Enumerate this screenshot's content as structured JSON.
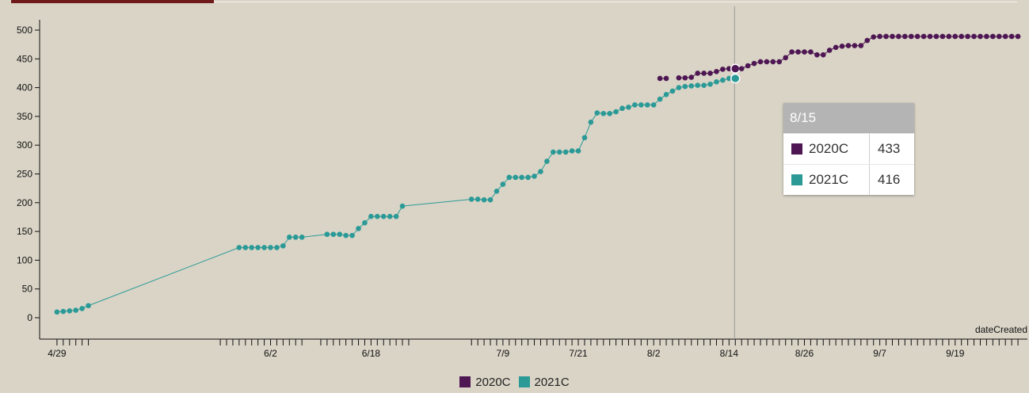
{
  "colors": {
    "series_2020C": "#4e1653",
    "series_2021C": "#2b9a97",
    "axis": "#111111",
    "crosshair": "#9a9a9a"
  },
  "chart_data": {
    "type": "line",
    "xlabel": "dateCreated",
    "ylabel": "",
    "ylim": [
      0,
      500
    ],
    "y_ticks": [
      0,
      50,
      100,
      150,
      200,
      250,
      300,
      350,
      400,
      450,
      500
    ],
    "x_domain": [
      "2021-04-28",
      "2021-09-30"
    ],
    "x_tick_labels": [
      {
        "date": "2021-04-29",
        "label": "4/29"
      },
      {
        "date": "2021-06-02",
        "label": "6/2"
      },
      {
        "date": "2021-06-18",
        "label": "6/18"
      },
      {
        "date": "2021-07-09",
        "label": "7/9"
      },
      {
        "date": "2021-07-21",
        "label": "7/21"
      },
      {
        "date": "2021-08-02",
        "label": "8/2"
      },
      {
        "date": "2021-08-14",
        "label": "8/14"
      },
      {
        "date": "2021-08-26",
        "label": "8/26"
      },
      {
        "date": "2021-09-07",
        "label": "9/7"
      },
      {
        "date": "2021-09-19",
        "label": "9/19"
      }
    ],
    "minor_tick_dates": [
      "2021-04-29",
      "2021-04-30",
      "2021-05-01",
      "2021-05-02",
      "2021-05-03",
      "2021-05-04",
      "2021-05-25",
      "2021-05-26",
      "2021-05-27",
      "2021-05-28",
      "2021-05-29",
      "2021-05-30",
      "2021-05-31",
      "2021-06-01",
      "2021-06-02",
      "2021-06-03",
      "2021-06-04",
      "2021-06-05",
      "2021-06-06",
      "2021-06-07",
      "2021-06-10",
      "2021-06-11",
      "2021-06-12",
      "2021-06-13",
      "2021-06-14",
      "2021-06-15",
      "2021-06-16",
      "2021-06-17",
      "2021-06-18",
      "2021-06-19",
      "2021-06-20",
      "2021-06-21",
      "2021-06-22",
      "2021-06-23",
      "2021-06-24",
      "2021-07-04",
      "2021-07-05",
      "2021-07-06",
      "2021-07-07",
      "2021-07-08",
      "2021-07-09",
      "2021-07-10",
      "2021-07-11",
      "2021-07-12",
      "2021-07-13",
      "2021-07-14",
      "2021-07-15",
      "2021-07-16",
      "2021-07-17",
      "2021-07-18",
      "2021-07-19",
      "2021-07-20",
      "2021-07-21",
      "2021-07-22",
      "2021-07-23",
      "2021-07-24",
      "2021-07-25",
      "2021-07-26",
      "2021-07-27",
      "2021-07-28",
      "2021-07-29",
      "2021-07-30",
      "2021-07-31",
      "2021-08-01",
      "2021-08-02",
      "2021-08-03",
      "2021-08-04",
      "2021-08-05",
      "2021-08-06",
      "2021-08-07",
      "2021-08-08",
      "2021-08-09",
      "2021-08-10",
      "2021-08-11",
      "2021-08-12",
      "2021-08-13",
      "2021-08-14",
      "2021-08-15",
      "2021-08-16",
      "2021-08-17",
      "2021-08-18",
      "2021-08-19",
      "2021-08-20",
      "2021-08-21",
      "2021-08-22",
      "2021-08-23",
      "2021-08-24",
      "2021-08-25",
      "2021-08-26",
      "2021-08-27",
      "2021-08-28",
      "2021-08-29",
      "2021-08-30",
      "2021-08-31",
      "2021-09-01",
      "2021-09-02",
      "2021-09-03",
      "2021-09-04",
      "2021-09-05",
      "2021-09-06",
      "2021-09-07",
      "2021-09-08",
      "2021-09-09",
      "2021-09-10",
      "2021-09-11",
      "2021-09-12",
      "2021-09-13",
      "2021-09-14",
      "2021-09-15",
      "2021-09-16",
      "2021-09-17",
      "2021-09-18",
      "2021-09-19",
      "2021-09-20",
      "2021-09-21",
      "2021-09-22",
      "2021-09-23",
      "2021-09-24",
      "2021-09-25",
      "2021-09-26",
      "2021-09-27",
      "2021-09-28",
      "2021-09-29"
    ],
    "series": [
      {
        "name": "2020C",
        "points": [
          [
            "2021-08-03",
            416
          ],
          [
            "2021-08-04",
            416
          ],
          [
            "2021-08-06",
            417
          ],
          [
            "2021-08-07",
            417
          ],
          [
            "2021-08-08",
            418
          ],
          [
            "2021-08-09",
            425
          ],
          [
            "2021-08-10",
            425
          ],
          [
            "2021-08-11",
            425
          ],
          [
            "2021-08-12",
            428
          ],
          [
            "2021-08-13",
            432
          ],
          [
            "2021-08-14",
            433
          ],
          [
            "2021-08-15",
            433
          ],
          [
            "2021-08-16",
            433
          ],
          [
            "2021-08-17",
            438
          ],
          [
            "2021-08-18",
            442
          ],
          [
            "2021-08-19",
            445
          ],
          [
            "2021-08-20",
            445
          ],
          [
            "2021-08-21",
            445
          ],
          [
            "2021-08-22",
            445
          ],
          [
            "2021-08-23",
            452
          ],
          [
            "2021-08-24",
            462
          ],
          [
            "2021-08-25",
            462
          ],
          [
            "2021-08-26",
            462
          ],
          [
            "2021-08-27",
            462
          ],
          [
            "2021-08-28",
            457
          ],
          [
            "2021-08-29",
            457
          ],
          [
            "2021-08-30",
            465
          ],
          [
            "2021-08-31",
            470
          ],
          [
            "2021-09-01",
            472
          ],
          [
            "2021-09-02",
            473
          ],
          [
            "2021-09-03",
            473
          ],
          [
            "2021-09-04",
            473
          ],
          [
            "2021-09-05",
            482
          ],
          [
            "2021-09-06",
            488
          ],
          [
            "2021-09-07",
            489
          ],
          [
            "2021-09-08",
            489
          ],
          [
            "2021-09-09",
            489
          ],
          [
            "2021-09-10",
            489
          ],
          [
            "2021-09-11",
            489
          ],
          [
            "2021-09-12",
            489
          ],
          [
            "2021-09-13",
            489
          ],
          [
            "2021-09-14",
            489
          ],
          [
            "2021-09-15",
            489
          ],
          [
            "2021-09-16",
            489
          ],
          [
            "2021-09-17",
            489
          ],
          [
            "2021-09-18",
            489
          ],
          [
            "2021-09-19",
            489
          ],
          [
            "2021-09-20",
            489
          ],
          [
            "2021-09-21",
            489
          ],
          [
            "2021-09-22",
            489
          ],
          [
            "2021-09-23",
            489
          ],
          [
            "2021-09-24",
            489
          ],
          [
            "2021-09-25",
            489
          ],
          [
            "2021-09-26",
            489
          ],
          [
            "2021-09-27",
            489
          ],
          [
            "2021-09-28",
            489
          ],
          [
            "2021-09-29",
            489
          ]
        ]
      },
      {
        "name": "2021C",
        "points": [
          [
            "2021-04-29",
            10
          ],
          [
            "2021-04-30",
            11
          ],
          [
            "2021-05-01",
            12
          ],
          [
            "2021-05-02",
            13
          ],
          [
            "2021-05-03",
            16
          ],
          [
            "2021-05-04",
            21
          ],
          [
            "2021-05-28",
            122
          ],
          [
            "2021-05-29",
            122
          ],
          [
            "2021-05-30",
            122
          ],
          [
            "2021-05-31",
            122
          ],
          [
            "2021-06-01",
            122
          ],
          [
            "2021-06-02",
            122
          ],
          [
            "2021-06-03",
            122
          ],
          [
            "2021-06-04",
            125
          ],
          [
            "2021-06-05",
            140
          ],
          [
            "2021-06-06",
            140
          ],
          [
            "2021-06-07",
            140
          ],
          [
            "2021-06-11",
            145
          ],
          [
            "2021-06-12",
            145
          ],
          [
            "2021-06-13",
            145
          ],
          [
            "2021-06-14",
            143
          ],
          [
            "2021-06-15",
            143
          ],
          [
            "2021-06-16",
            155
          ],
          [
            "2021-06-17",
            165
          ],
          [
            "2021-06-18",
            176
          ],
          [
            "2021-06-19",
            176
          ],
          [
            "2021-06-20",
            176
          ],
          [
            "2021-06-21",
            176
          ],
          [
            "2021-06-22",
            176
          ],
          [
            "2021-06-23",
            194
          ],
          [
            "2021-07-04",
            206
          ],
          [
            "2021-07-05",
            206
          ],
          [
            "2021-07-06",
            205
          ],
          [
            "2021-07-07",
            205
          ],
          [
            "2021-07-08",
            220
          ],
          [
            "2021-07-09",
            232
          ],
          [
            "2021-07-10",
            244
          ],
          [
            "2021-07-11",
            244
          ],
          [
            "2021-07-12",
            244
          ],
          [
            "2021-07-13",
            244
          ],
          [
            "2021-07-14",
            246
          ],
          [
            "2021-07-15",
            254
          ],
          [
            "2021-07-16",
            272
          ],
          [
            "2021-07-17",
            288
          ],
          [
            "2021-07-18",
            288
          ],
          [
            "2021-07-19",
            288
          ],
          [
            "2021-07-20",
            290
          ],
          [
            "2021-07-21",
            290
          ],
          [
            "2021-07-22",
            313
          ],
          [
            "2021-07-23",
            340
          ],
          [
            "2021-07-24",
            356
          ],
          [
            "2021-07-25",
            355
          ],
          [
            "2021-07-26",
            355
          ],
          [
            "2021-07-27",
            358
          ],
          [
            "2021-07-28",
            364
          ],
          [
            "2021-07-29",
            366
          ],
          [
            "2021-07-30",
            370
          ],
          [
            "2021-07-31",
            370
          ],
          [
            "2021-08-01",
            370
          ],
          [
            "2021-08-02",
            370
          ],
          [
            "2021-08-03",
            380
          ],
          [
            "2021-08-04",
            388
          ],
          [
            "2021-08-05",
            394
          ],
          [
            "2021-08-06",
            400
          ],
          [
            "2021-08-07",
            402
          ],
          [
            "2021-08-08",
            403
          ],
          [
            "2021-08-09",
            404
          ],
          [
            "2021-08-10",
            404
          ],
          [
            "2021-08-11",
            406
          ],
          [
            "2021-08-12",
            410
          ],
          [
            "2021-08-13",
            413
          ],
          [
            "2021-08-14",
            416
          ],
          [
            "2021-08-15",
            416
          ]
        ]
      }
    ],
    "hover": {
      "date": "2021-08-15",
      "label": "8/15",
      "rows": [
        {
          "series": "2020C",
          "value": "433"
        },
        {
          "series": "2021C",
          "value": "416"
        }
      ]
    },
    "legend": {
      "placement": "bottom-center",
      "items": [
        {
          "label": "2020C",
          "color": "#4e1653"
        },
        {
          "label": "2021C",
          "color": "#2b9a97"
        }
      ]
    }
  }
}
